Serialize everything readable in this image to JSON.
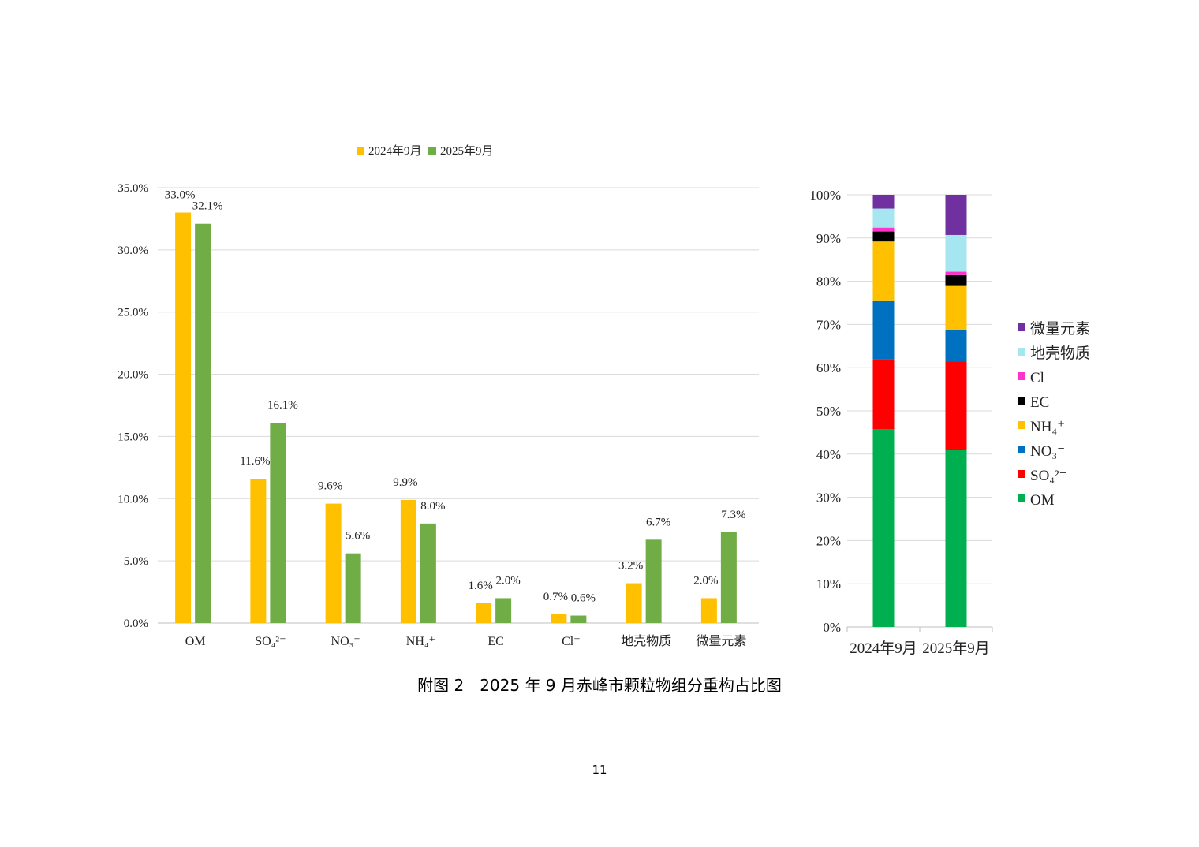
{
  "caption": "附图 2　2025 年 9 月赤峰市颗粒物组分重构占比图",
  "page_number": "11",
  "chart_data": [
    {
      "type": "bar",
      "title": "",
      "xlabel": "",
      "ylabel": "",
      "categories": [
        "OM",
        "SO₄²⁻",
        "NO₃⁻",
        "NH₄⁺",
        "EC",
        "Cl⁻",
        "地壳物质",
        "微量元素"
      ],
      "series": [
        {
          "name": "2024年9月",
          "color": "#FFC000",
          "values": [
            33.0,
            11.6,
            9.6,
            9.9,
            1.6,
            0.7,
            3.2,
            2.0
          ],
          "labels": [
            "33.0%",
            "11.6%",
            "9.6%",
            "9.9%",
            "1.6%",
            "0.7%",
            "3.2%",
            "2.0%"
          ]
        },
        {
          "name": "2025年9月",
          "color": "#70AD47",
          "values": [
            32.1,
            16.1,
            5.6,
            8.0,
            2.0,
            0.6,
            6.7,
            7.3
          ],
          "labels": [
            "32.1%",
            "16.1%",
            "5.6%",
            "8.0%",
            "2.0%",
            "0.6%",
            "6.7%",
            "7.3%"
          ]
        }
      ],
      "ylim": [
        0,
        35
      ],
      "yticks": [
        0,
        5,
        10,
        15,
        20,
        25,
        30,
        35
      ],
      "ytick_labels": [
        "0.0%",
        "5.0%",
        "10.0%",
        "15.0%",
        "20.0%",
        "25.0%",
        "30.0%",
        "35.0%"
      ],
      "grid": true,
      "legend": "top-center"
    },
    {
      "type": "bar",
      "stacked": true,
      "normalized": true,
      "title": "",
      "categories": [
        "2024年9月",
        "2025年9月"
      ],
      "series": [
        {
          "name": "OM",
          "color": "#00B050",
          "values": [
            45.8,
            40.9
          ]
        },
        {
          "name": "SO₄²⁻",
          "color": "#FF0000",
          "values": [
            16.2,
            20.5
          ]
        },
        {
          "name": "NO₃⁻",
          "color": "#0070C0",
          "values": [
            13.4,
            7.3
          ]
        },
        {
          "name": "NH₄⁺",
          "color": "#FFC000",
          "values": [
            13.8,
            10.2
          ]
        },
        {
          "name": "EC",
          "color": "#000000",
          "values": [
            2.3,
            2.5
          ]
        },
        {
          "name": "Cl⁻",
          "color": "#FF33CC",
          "values": [
            0.9,
            0.8
          ]
        },
        {
          "name": "地壳物质",
          "color": "#A6E6F0",
          "values": [
            4.4,
            8.5
          ]
        },
        {
          "name": "微量元素",
          "color": "#7030A0",
          "values": [
            3.2,
            9.3
          ]
        }
      ],
      "ylim": [
        0,
        100
      ],
      "yticks": [
        0,
        10,
        20,
        30,
        40,
        50,
        60,
        70,
        80,
        90,
        100
      ],
      "ytick_labels": [
        "0%",
        "10%",
        "20%",
        "30%",
        "40%",
        "50%",
        "60%",
        "70%",
        "80%",
        "90%",
        "100%"
      ],
      "grid": true,
      "legend": "right",
      "legend_order": [
        "微量元素",
        "地壳物质",
        "Cl⁻",
        "EC",
        "NH₄⁺",
        "NO₃⁻",
        "SO₄²⁻",
        "OM"
      ]
    }
  ]
}
